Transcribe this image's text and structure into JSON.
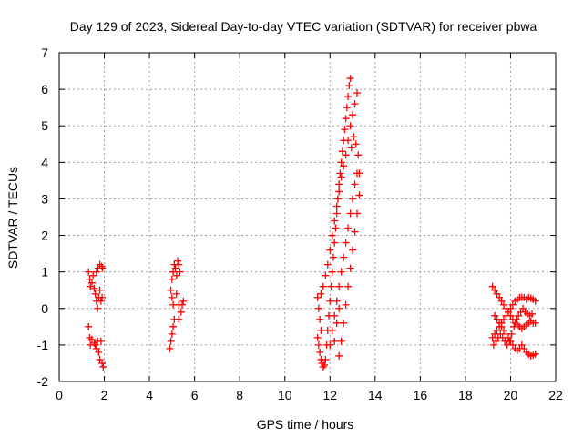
{
  "chart_data": {
    "type": "scatter",
    "title": "Day 129 of 2023, Sidereal Day-to-day VTEC variation (SDTVAR) for receiver pbwa",
    "xlabel": "GPS time / hours",
    "ylabel": "SDTVAR / TECUs",
    "xlim": [
      0,
      22
    ],
    "ylim": [
      -2,
      7
    ],
    "xticks": [
      0,
      2,
      4,
      6,
      8,
      10,
      12,
      14,
      16,
      18,
      20,
      22
    ],
    "yticks": [
      -2,
      -1,
      0,
      1,
      2,
      3,
      4,
      5,
      6,
      7
    ],
    "grid": true,
    "marker": "+",
    "color": "#ff0000",
    "series": [
      {
        "name": "SDTVAR",
        "points": [
          [
            1.3,
            1.0
          ],
          [
            1.35,
            0.8
          ],
          [
            1.38,
            0.6
          ],
          [
            1.45,
            0.7
          ],
          [
            1.5,
            0.9
          ],
          [
            1.55,
            0.55
          ],
          [
            1.6,
            0.4
          ],
          [
            1.65,
            0.2
          ],
          [
            1.7,
            0.0
          ],
          [
            1.75,
            0.3
          ],
          [
            1.8,
            0.5
          ],
          [
            1.85,
            0.2
          ],
          [
            1.9,
            0.3
          ],
          [
            1.65,
            1.0
          ],
          [
            1.72,
            1.1
          ],
          [
            1.8,
            1.2
          ],
          [
            1.88,
            1.15
          ],
          [
            1.92,
            1.1
          ],
          [
            1.3,
            -0.5
          ],
          [
            1.35,
            -0.8
          ],
          [
            1.38,
            -1.0
          ],
          [
            1.45,
            -0.85
          ],
          [
            1.55,
            -0.95
          ],
          [
            1.6,
            -1.0
          ],
          [
            1.65,
            -1.1
          ],
          [
            1.7,
            -0.9
          ],
          [
            1.75,
            -1.2
          ],
          [
            1.8,
            -1.4
          ],
          [
            1.85,
            -0.9
          ],
          [
            1.9,
            -1.5
          ],
          [
            1.95,
            -1.6
          ],
          [
            4.9,
            -1.1
          ],
          [
            4.95,
            -0.9
          ],
          [
            5.0,
            -0.7
          ],
          [
            5.05,
            -0.5
          ],
          [
            5.1,
            -0.3
          ],
          [
            5.05,
            0.1
          ],
          [
            5.0,
            0.3
          ],
          [
            4.95,
            0.5
          ],
          [
            5.0,
            0.8
          ],
          [
            5.05,
            1.0
          ],
          [
            5.1,
            1.2
          ],
          [
            5.15,
            1.1
          ],
          [
            5.2,
            0.9
          ],
          [
            5.25,
            1.3
          ],
          [
            5.3,
            1.2
          ],
          [
            5.35,
            1.0
          ],
          [
            5.2,
            0.4
          ],
          [
            5.3,
            0.1
          ],
          [
            5.4,
            -0.1
          ],
          [
            5.45,
            0.1
          ],
          [
            5.5,
            0.2
          ],
          [
            5.3,
            -0.3
          ],
          [
            11.45,
            0.3
          ],
          [
            11.5,
            0.0
          ],
          [
            11.55,
            -0.3
          ],
          [
            11.6,
            -0.6
          ],
          [
            11.45,
            -0.8
          ],
          [
            11.5,
            -1.0
          ],
          [
            11.55,
            -1.2
          ],
          [
            11.6,
            -1.4
          ],
          [
            11.65,
            -1.5
          ],
          [
            11.7,
            -1.6
          ],
          [
            11.75,
            -1.55
          ],
          [
            11.8,
            -1.4
          ],
          [
            11.85,
            -1.0
          ],
          [
            11.9,
            -0.6
          ],
          [
            11.95,
            -0.2
          ],
          [
            12.0,
            0.2
          ],
          [
            12.05,
            0.6
          ],
          [
            12.1,
            1.0
          ],
          [
            12.15,
            1.4
          ],
          [
            12.2,
            1.8
          ],
          [
            12.25,
            2.2
          ],
          [
            12.3,
            2.6
          ],
          [
            12.35,
            3.0
          ],
          [
            12.4,
            3.4
          ],
          [
            12.45,
            3.7
          ],
          [
            12.5,
            4.0
          ],
          [
            12.55,
            4.3
          ],
          [
            12.6,
            4.6
          ],
          [
            12.65,
            4.9
          ],
          [
            12.7,
            5.2
          ],
          [
            12.75,
            5.5
          ],
          [
            12.8,
            5.8
          ],
          [
            12.85,
            6.1
          ],
          [
            12.9,
            6.3
          ],
          [
            11.6,
            0.4
          ],
          [
            11.7,
            0.6
          ],
          [
            11.8,
            0.9
          ],
          [
            11.9,
            1.2
          ],
          [
            12.0,
            1.6
          ],
          [
            12.1,
            2.0
          ],
          [
            12.2,
            2.4
          ],
          [
            12.3,
            2.8
          ],
          [
            12.4,
            3.2
          ],
          [
            12.5,
            3.6
          ],
          [
            12.6,
            3.9
          ],
          [
            12.7,
            4.2
          ],
          [
            12.8,
            4.6
          ],
          [
            12.9,
            5.0
          ],
          [
            13.0,
            5.3
          ],
          [
            13.1,
            5.6
          ],
          [
            13.2,
            5.9
          ],
          [
            12.0,
            -1.0
          ],
          [
            12.1,
            -0.6
          ],
          [
            12.2,
            -0.2
          ],
          [
            12.3,
            0.2
          ],
          [
            12.4,
            0.6
          ],
          [
            12.5,
            1.0
          ],
          [
            12.6,
            1.4
          ],
          [
            12.7,
            1.8
          ],
          [
            12.8,
            2.2
          ],
          [
            12.9,
            2.6
          ],
          [
            13.0,
            3.0
          ],
          [
            13.1,
            3.4
          ],
          [
            13.2,
            3.7
          ],
          [
            12.4,
            -1.3
          ],
          [
            12.5,
            -0.9
          ],
          [
            12.6,
            -0.4
          ],
          [
            12.7,
            0.1
          ],
          [
            12.8,
            0.6
          ],
          [
            12.9,
            1.1
          ],
          [
            13.0,
            1.6
          ],
          [
            13.1,
            2.1
          ],
          [
            13.2,
            2.6
          ],
          [
            13.3,
            3.1
          ],
          [
            12.95,
            4.4
          ],
          [
            13.05,
            4.7
          ],
          [
            13.15,
            4.5
          ],
          [
            13.25,
            4.2
          ],
          [
            13.3,
            3.7
          ],
          [
            12.2,
            -0.9
          ],
          [
            12.3,
            -0.4
          ],
          [
            12.4,
            0.0
          ],
          [
            19.2,
            0.6
          ],
          [
            19.3,
            0.5
          ],
          [
            19.4,
            0.4
          ],
          [
            19.5,
            0.3
          ],
          [
            19.6,
            0.2
          ],
          [
            19.7,
            0.1
          ],
          [
            19.8,
            0.0
          ],
          [
            19.9,
            -0.1
          ],
          [
            20.0,
            -0.2
          ],
          [
            20.1,
            -0.3
          ],
          [
            20.2,
            -0.4
          ],
          [
            20.3,
            -0.45
          ],
          [
            20.4,
            -0.5
          ],
          [
            20.5,
            -0.55
          ],
          [
            20.6,
            -0.5
          ],
          [
            20.7,
            -0.45
          ],
          [
            20.8,
            -0.4
          ],
          [
            20.9,
            -0.35
          ],
          [
            21.0,
            -0.4
          ],
          [
            21.1,
            -0.4
          ],
          [
            19.3,
            -0.2
          ],
          [
            19.4,
            -0.3
          ],
          [
            19.5,
            -0.4
          ],
          [
            19.6,
            -0.5
          ],
          [
            19.7,
            -0.6
          ],
          [
            19.8,
            -0.7
          ],
          [
            19.9,
            -0.8
          ],
          [
            20.0,
            -0.9
          ],
          [
            20.1,
            -1.0
          ],
          [
            20.2,
            -1.1
          ],
          [
            20.3,
            -1.15
          ],
          [
            20.4,
            -1.1
          ],
          [
            20.5,
            -1.0
          ],
          [
            20.6,
            -1.1
          ],
          [
            20.7,
            -1.2
          ],
          [
            20.8,
            -1.25
          ],
          [
            20.9,
            -1.3
          ],
          [
            21.0,
            -1.28
          ],
          [
            21.1,
            -1.25
          ],
          [
            19.2,
            -0.8
          ],
          [
            19.3,
            -0.7
          ],
          [
            19.4,
            -0.6
          ],
          [
            19.5,
            -0.5
          ],
          [
            19.6,
            -0.4
          ],
          [
            19.7,
            -0.3
          ],
          [
            19.8,
            -0.2
          ],
          [
            19.9,
            -0.1
          ],
          [
            20.0,
            0.0
          ],
          [
            20.1,
            0.1
          ],
          [
            20.2,
            0.2
          ],
          [
            20.3,
            0.25
          ],
          [
            20.4,
            0.3
          ],
          [
            20.5,
            0.3
          ],
          [
            20.6,
            0.3
          ],
          [
            20.7,
            0.25
          ],
          [
            20.8,
            0.3
          ],
          [
            20.9,
            0.28
          ],
          [
            21.0,
            0.25
          ],
          [
            21.1,
            0.2
          ],
          [
            19.25,
            -1.0
          ],
          [
            19.35,
            -0.9
          ],
          [
            19.45,
            -0.8
          ],
          [
            19.55,
            -0.7
          ],
          [
            19.65,
            -0.8
          ],
          [
            19.75,
            -0.9
          ],
          [
            19.85,
            -1.0
          ],
          [
            19.95,
            -0.9
          ],
          [
            20.05,
            -0.7
          ],
          [
            20.15,
            -0.5
          ],
          [
            20.25,
            -0.3
          ],
          [
            20.35,
            -0.2
          ],
          [
            20.45,
            -0.1
          ],
          [
            20.55,
            0.0
          ],
          [
            20.65,
            -0.1
          ],
          [
            20.75,
            -0.15
          ],
          [
            20.85,
            -0.2
          ],
          [
            20.95,
            -0.15
          ]
        ]
      }
    ]
  }
}
